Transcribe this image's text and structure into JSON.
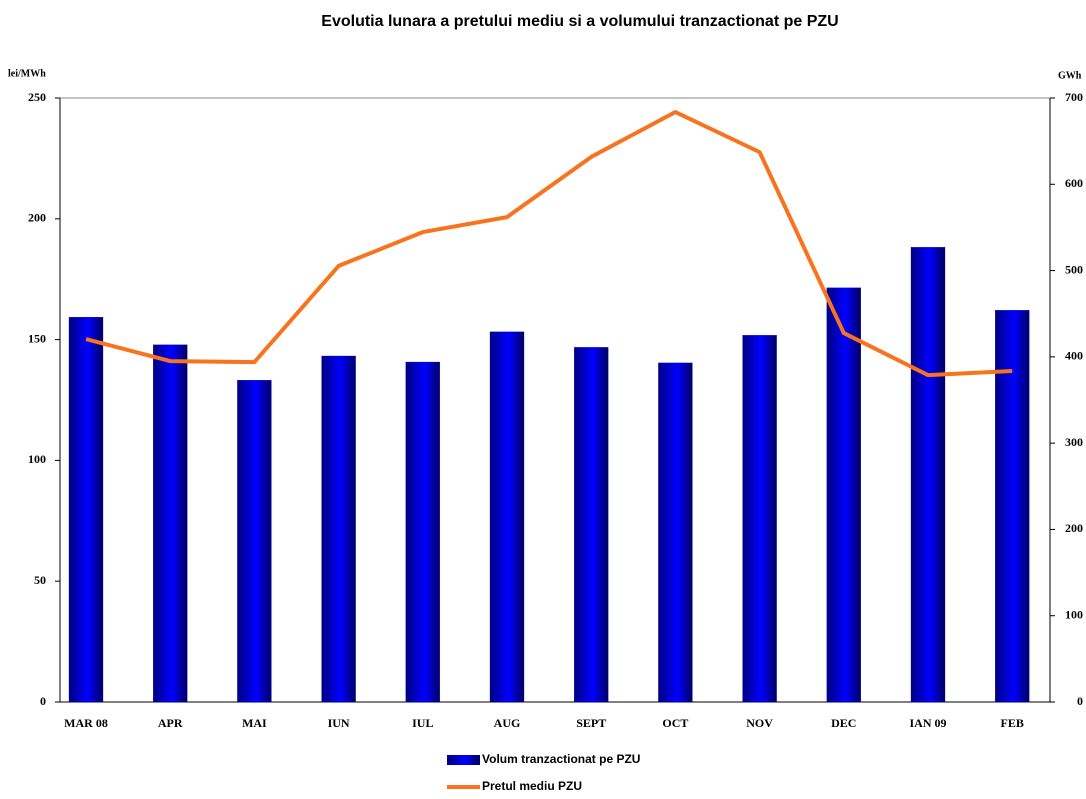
{
  "chart_data": {
    "type": "bar-line",
    "title": "Evolutia lunara a pretului mediu si a volumului tranzactionat pe PZU",
    "y_label": "lei/MWh",
    "y2_label": "GWh",
    "categories": [
      "MAR 08",
      "APR",
      "MAI",
      "IUN",
      "IUL",
      "AUG",
      "SEPT",
      "OCT",
      "NOV",
      "DEC",
      "IAN 09",
      "FEB"
    ],
    "series": [
      {
        "name": "Volum tranzactionat pe PZU",
        "type": "bar",
        "axis": "y2",
        "color": "#0000ee",
        "values": [
          446,
          414,
          373,
          401,
          394,
          429,
          411,
          393,
          425,
          480,
          527,
          454
        ]
      },
      {
        "name": "Pretul mediu PZU",
        "type": "line",
        "axis": "y",
        "color": "#f7731e",
        "values": [
          150.2,
          141.1,
          140.7,
          180.5,
          194.5,
          200.7,
          225.6,
          244.2,
          227.6,
          152.7,
          135.3,
          137.0
        ]
      }
    ],
    "ylim": [
      0,
      250
    ],
    "yticks": [
      0,
      50,
      100,
      150,
      200,
      250
    ],
    "y2lim": [
      0,
      700
    ],
    "y2ticks": [
      0,
      100,
      200,
      300,
      400,
      500,
      600,
      700
    ]
  }
}
